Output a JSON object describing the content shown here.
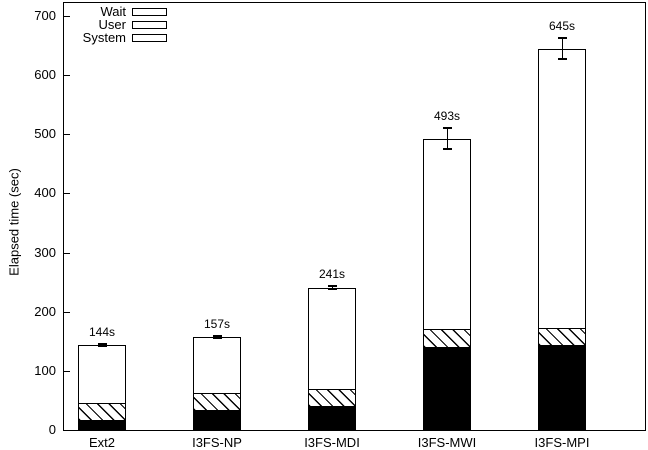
{
  "chart_data": {
    "type": "bar",
    "stacked": true,
    "title": "",
    "xlabel": "",
    "ylabel": "Elapsed time (sec)",
    "ylim": [
      0,
      722
    ],
    "yticks": [
      0,
      100,
      200,
      300,
      400,
      500,
      600,
      700
    ],
    "grid": false,
    "legend_position": "top-left",
    "categories": [
      "Ext2",
      "I3FS-NP",
      "I3FS-MDI",
      "I3FS-MWI",
      "I3FS-MPI"
    ],
    "series": [
      {
        "name": "System",
        "style": "black",
        "values": [
          17,
          34,
          41,
          140,
          144
        ]
      },
      {
        "name": "User",
        "style": "hatch",
        "values": [
          30,
          30,
          30,
          32,
          30
        ]
      },
      {
        "name": "Wait",
        "style": "white",
        "values": [
          97,
          93,
          170,
          321,
          471
        ]
      }
    ],
    "totals": [
      144,
      157,
      241,
      493,
      645
    ],
    "total_labels": [
      "144s",
      "157s",
      "241s",
      "493s",
      "645s"
    ],
    "error_bars": [
      3,
      3,
      4,
      19,
      20
    ],
    "legend": [
      {
        "label": "Wait",
        "style": "white"
      },
      {
        "label": "User",
        "style": "hatch"
      },
      {
        "label": "System",
        "style": "black"
      }
    ],
    "colors": {
      "foreground": "#000000",
      "background": "#ffffff"
    }
  }
}
